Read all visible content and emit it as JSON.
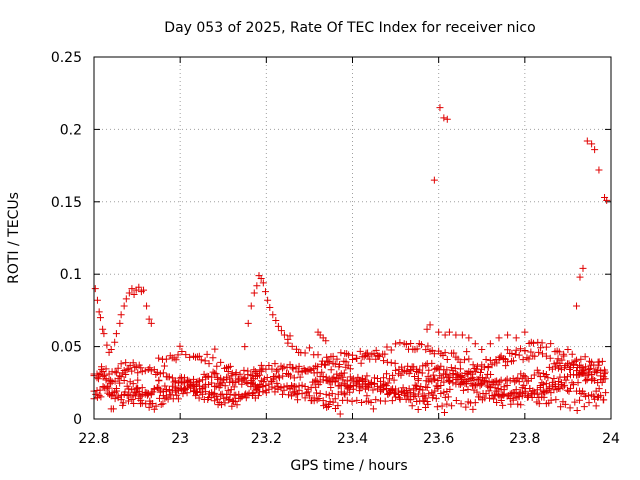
{
  "chart_data": {
    "type": "scatter",
    "title": "Day 053 of 2025, Rate Of TEC Index for receiver nico",
    "xlabel": "GPS time / hours",
    "ylabel": "ROTI / TECUs",
    "xlim": [
      22.8,
      24.0
    ],
    "ylim": [
      0,
      0.25
    ],
    "x_ticks": [
      22.8,
      23.0,
      23.2,
      23.4,
      23.6,
      23.8,
      24.0
    ],
    "x_tick_labels": [
      "22.8",
      "23",
      "23.2",
      "23.4",
      "23.6",
      "23.8",
      "24"
    ],
    "y_ticks": [
      0,
      0.05,
      0.1,
      0.15,
      0.2,
      0.25
    ],
    "y_tick_labels": [
      "0",
      "0.05",
      "0.1",
      "0.15",
      "0.2",
      "0.25"
    ],
    "grid": true,
    "marker": "+",
    "color": "#e00000",
    "series": [
      {
        "name": "ROTI",
        "points": [
          [
            22.803,
            0.09
          ],
          [
            22.808,
            0.082
          ],
          [
            22.812,
            0.074
          ],
          [
            22.815,
            0.07
          ],
          [
            22.82,
            0.062
          ],
          [
            22.823,
            0.059
          ],
          [
            22.83,
            0.051
          ],
          [
            22.835,
            0.046
          ],
          [
            22.84,
            0.048
          ],
          [
            22.848,
            0.053
          ],
          [
            22.852,
            0.059
          ],
          [
            22.86,
            0.066
          ],
          [
            22.863,
            0.072
          ],
          [
            22.87,
            0.078
          ],
          [
            22.875,
            0.083
          ],
          [
            22.882,
            0.087
          ],
          [
            22.888,
            0.09
          ],
          [
            22.893,
            0.086
          ],
          [
            22.898,
            0.089
          ],
          [
            22.904,
            0.091
          ],
          [
            22.91,
            0.088
          ],
          [
            22.915,
            0.089
          ],
          [
            22.922,
            0.078
          ],
          [
            22.928,
            0.069
          ],
          [
            22.933,
            0.066
          ],
          [
            22.84,
            0.007
          ],
          [
            22.845,
            0.007
          ],
          [
            23.15,
            0.05
          ],
          [
            23.158,
            0.066
          ],
          [
            23.165,
            0.078
          ],
          [
            23.172,
            0.087
          ],
          [
            23.178,
            0.092
          ],
          [
            23.183,
            0.099
          ],
          [
            23.188,
            0.097
          ],
          [
            23.193,
            0.094
          ],
          [
            23.198,
            0.088
          ],
          [
            23.203,
            0.082
          ],
          [
            23.208,
            0.077
          ],
          [
            23.215,
            0.072
          ],
          [
            23.222,
            0.068
          ],
          [
            23.228,
            0.064
          ],
          [
            23.235,
            0.061
          ],
          [
            23.242,
            0.058
          ],
          [
            23.25,
            0.055
          ],
          [
            23.32,
            0.06
          ],
          [
            23.325,
            0.058
          ],
          [
            23.332,
            0.056
          ],
          [
            23.338,
            0.054
          ],
          [
            23.345,
            0.01
          ],
          [
            23.34,
            0.008
          ],
          [
            23.348,
            0.012
          ],
          [
            23.59,
            0.165
          ],
          [
            23.603,
            0.215
          ],
          [
            23.612,
            0.208
          ],
          [
            23.62,
            0.207
          ],
          [
            23.58,
            0.065
          ],
          [
            23.573,
            0.062
          ],
          [
            23.6,
            0.06
          ],
          [
            23.615,
            0.058
          ],
          [
            23.625,
            0.06
          ],
          [
            23.64,
            0.058
          ],
          [
            23.655,
            0.058
          ],
          [
            23.67,
            0.056
          ],
          [
            23.685,
            0.052
          ],
          [
            23.7,
            0.048
          ],
          [
            23.72,
            0.052
          ],
          [
            23.74,
            0.056
          ],
          [
            23.76,
            0.058
          ],
          [
            23.78,
            0.056
          ],
          [
            23.8,
            0.06
          ],
          [
            23.92,
            0.078
          ],
          [
            23.928,
            0.098
          ],
          [
            23.935,
            0.104
          ],
          [
            23.945,
            0.192
          ],
          [
            23.955,
            0.19
          ],
          [
            23.962,
            0.186
          ],
          [
            23.972,
            0.172
          ],
          [
            23.985,
            0.153
          ],
          [
            23.99,
            0.151
          ]
        ],
        "bands": [
          {
            "kind": "wave",
            "x0": 22.8,
            "x1": 23.99,
            "base": 0.03,
            "amp": 0.006,
            "period": 0.34,
            "phase": 0.0,
            "step": 0.007
          },
          {
            "kind": "wave",
            "x0": 22.8,
            "x1": 23.99,
            "base": 0.024,
            "amp": 0.005,
            "period": 0.28,
            "phase": 1.2,
            "step": 0.007
          },
          {
            "kind": "wave",
            "x0": 22.8,
            "x1": 23.99,
            "base": 0.019,
            "amp": 0.004,
            "period": 0.22,
            "phase": 2.3,
            "step": 0.007
          },
          {
            "kind": "wave",
            "x0": 22.95,
            "x1": 23.99,
            "base": 0.036,
            "amp": 0.008,
            "period": 0.4,
            "phase": 0.7,
            "step": 0.009
          },
          {
            "kind": "wave",
            "x0": 23.25,
            "x1": 23.99,
            "base": 0.045,
            "amp": 0.006,
            "period": 0.3,
            "phase": 1.9,
            "step": 0.01
          },
          {
            "kind": "wave",
            "x0": 22.8,
            "x1": 23.2,
            "base": 0.015,
            "amp": 0.004,
            "period": 0.18,
            "phase": 0.3,
            "step": 0.008
          },
          {
            "kind": "wave",
            "x0": 23.3,
            "x1": 23.99,
            "base": 0.013,
            "amp": 0.003,
            "period": 0.26,
            "phase": 2.8,
            "step": 0.011
          }
        ]
      }
    ]
  }
}
